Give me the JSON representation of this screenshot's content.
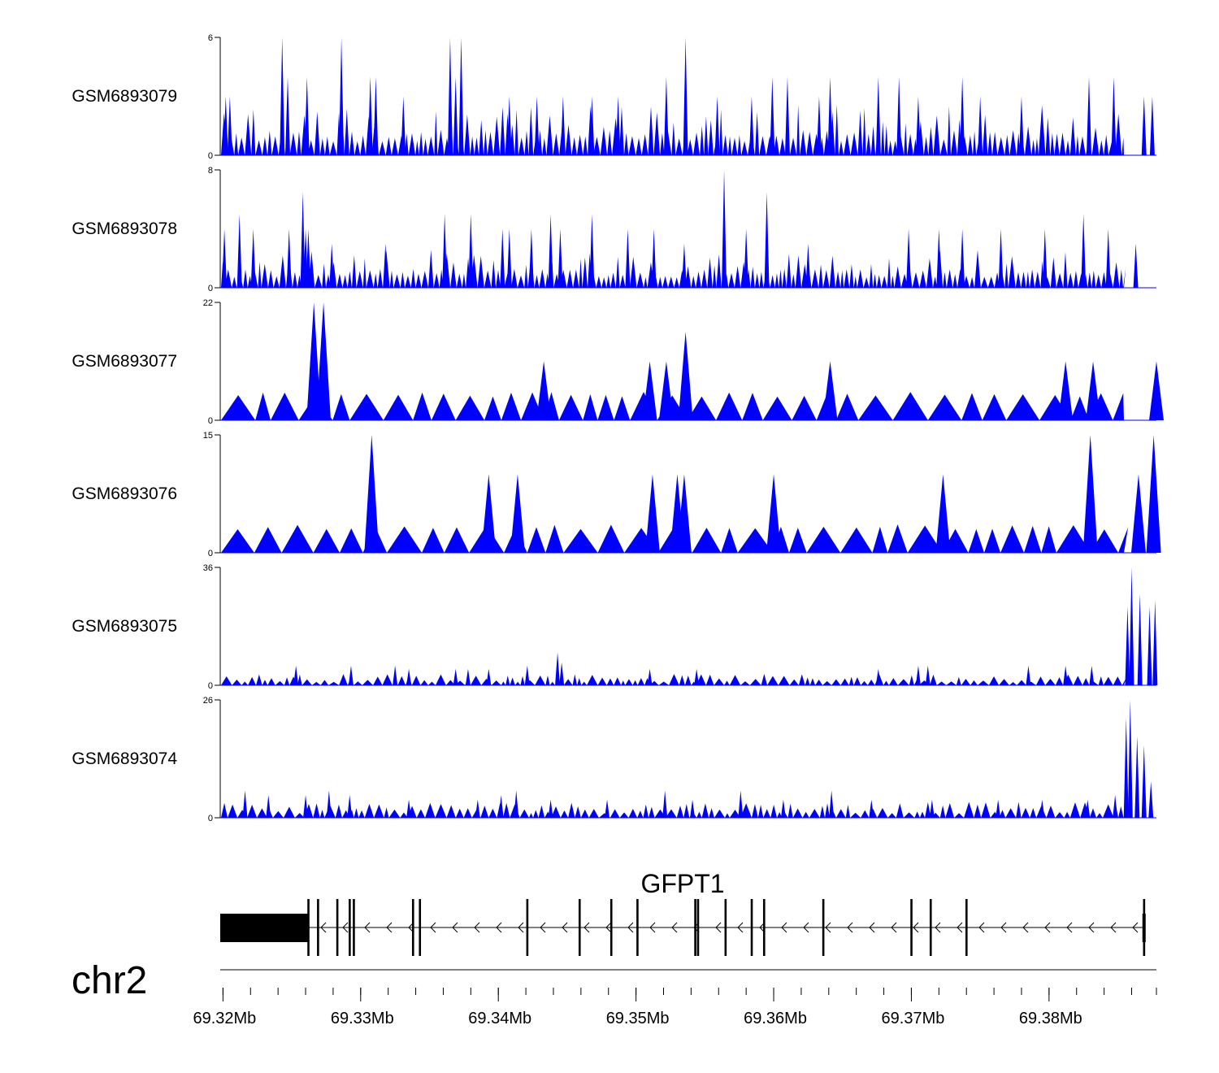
{
  "chart_data": {
    "type": "area",
    "chromosome": "chr2",
    "xlim": [
      69.3198,
      69.3878
    ],
    "x_unit": "Mb",
    "x_ticks": [
      {
        "value": 69.32,
        "label": "69.32Mb"
      },
      {
        "value": 69.33,
        "label": "69.33Mb"
      },
      {
        "value": 69.34,
        "label": "69.34Mb"
      },
      {
        "value": 69.35,
        "label": "69.35Mb"
      },
      {
        "value": 69.36,
        "label": "69.36Mb"
      },
      {
        "value": 69.37,
        "label": "69.37Mb"
      },
      {
        "value": 69.38,
        "label": "69.38Mb"
      }
    ],
    "series_color": "#0000ff",
    "tracks": [
      {
        "name": "GSM6893079",
        "ymax": 6,
        "ymax_label": "6",
        "ymin_label": "0",
        "style": "dense",
        "peaks": [
          [
            69.3202,
            3
          ],
          [
            69.3205,
            3
          ],
          [
            69.3243,
            6
          ],
          [
            69.3247,
            4
          ],
          [
            69.3261,
            4
          ],
          [
            69.3286,
            6
          ],
          [
            69.3307,
            4
          ],
          [
            69.3311,
            4
          ],
          [
            69.3331,
            3
          ],
          [
            69.3365,
            6
          ],
          [
            69.3373,
            6
          ],
          [
            69.3369,
            4
          ],
          [
            69.3408,
            3
          ],
          [
            69.3428,
            3
          ],
          [
            69.3447,
            3
          ],
          [
            69.3468,
            3
          ],
          [
            69.3487,
            3
          ],
          [
            69.3522,
            4
          ],
          [
            69.3536,
            6
          ],
          [
            69.3559,
            3
          ],
          [
            69.3584,
            3
          ],
          [
            69.3599,
            4
          ],
          [
            69.361,
            4
          ],
          [
            69.3633,
            3
          ],
          [
            69.3641,
            4
          ],
          [
            69.3676,
            4
          ],
          [
            69.3691,
            4
          ],
          [
            69.3705,
            3
          ],
          [
            69.3737,
            4
          ],
          [
            69.375,
            3
          ],
          [
            69.378,
            3
          ],
          [
            69.3829,
            4
          ],
          [
            69.3847,
            4
          ],
          [
            69.3869,
            3
          ],
          [
            69.3875,
            3
          ]
        ]
      },
      {
        "name": "GSM6893078",
        "ymax": 8,
        "ymax_label": "8",
        "ymin_label": "0",
        "style": "dense",
        "peaks": [
          [
            69.3201,
            4
          ],
          [
            69.3212,
            5
          ],
          [
            69.3222,
            4
          ],
          [
            69.3248,
            4
          ],
          [
            69.3258,
            6.5
          ],
          [
            69.326,
            4
          ],
          [
            69.3262,
            4
          ],
          [
            69.3279,
            3
          ],
          [
            69.3318,
            3
          ],
          [
            69.3361,
            5
          ],
          [
            69.338,
            5
          ],
          [
            69.3403,
            4
          ],
          [
            69.3408,
            4
          ],
          [
            69.3424,
            4
          ],
          [
            69.3438,
            5
          ],
          [
            69.3445,
            4
          ],
          [
            69.3468,
            5
          ],
          [
            69.3494,
            4
          ],
          [
            69.3513,
            4
          ],
          [
            69.3535,
            3
          ],
          [
            69.3564,
            8
          ],
          [
            69.358,
            4
          ],
          [
            69.3595,
            6.5
          ],
          [
            69.3625,
            3
          ],
          [
            69.3698,
            4
          ],
          [
            69.372,
            4
          ],
          [
            69.3737,
            4
          ],
          [
            69.3765,
            4
          ],
          [
            69.3797,
            4
          ],
          [
            69.3825,
            5
          ],
          [
            69.3843,
            4
          ],
          [
            69.3863,
            3
          ]
        ]
      },
      {
        "name": "GSM6893077",
        "ymax": 22,
        "ymax_label": "22",
        "ymin_label": "0",
        "style": "sparse",
        "peaks": [
          [
            69.3266,
            22
          ],
          [
            69.3273,
            22
          ],
          [
            69.3433,
            11
          ],
          [
            69.351,
            11
          ],
          [
            69.3522,
            11
          ],
          [
            69.3536,
            16.5
          ],
          [
            69.3641,
            11
          ],
          [
            69.3812,
            11
          ],
          [
            69.3832,
            11
          ],
          [
            69.3878,
            11
          ]
        ]
      },
      {
        "name": "GSM6893076",
        "ymax": 15,
        "ymax_label": "15",
        "ymin_label": "0",
        "style": "sparse",
        "peaks": [
          [
            69.3308,
            15
          ],
          [
            69.3393,
            10
          ],
          [
            69.3414,
            10
          ],
          [
            69.3512,
            10
          ],
          [
            69.353,
            10
          ],
          [
            69.3535,
            10
          ],
          [
            69.36,
            10
          ],
          [
            69.3723,
            10
          ],
          [
            69.383,
            15
          ],
          [
            69.3865,
            10
          ],
          [
            69.3876,
            15
          ]
        ]
      },
      {
        "name": "GSM6893075",
        "ymax": 36,
        "ymax_label": "36",
        "ymin_label": "0",
        "style": "low_with_end_peak",
        "peaks": [
          [
            69.3253,
            6
          ],
          [
            69.3293,
            6
          ],
          [
            69.3325,
            6
          ],
          [
            69.3335,
            5
          ],
          [
            69.3369,
            5
          ],
          [
            69.3378,
            5
          ],
          [
            69.3393,
            5
          ],
          [
            69.3421,
            6
          ],
          [
            69.3443,
            10
          ],
          [
            69.3446,
            7
          ],
          [
            69.351,
            5
          ],
          [
            69.3544,
            5
          ],
          [
            69.3676,
            5
          ],
          [
            69.3705,
            6
          ],
          [
            69.3712,
            6
          ],
          [
            69.3785,
            6
          ],
          [
            69.3812,
            6
          ],
          [
            69.3831,
            6
          ],
          [
            69.3857,
            24
          ],
          [
            69.386,
            36
          ],
          [
            69.3866,
            28
          ],
          [
            69.3873,
            24
          ],
          [
            69.3877,
            26
          ]
        ]
      },
      {
        "name": "GSM6893074",
        "ymax": 26,
        "ymax_label": "26",
        "ymin_label": "0",
        "style": "low_with_end_peak",
        "peaks": [
          [
            69.3201,
            3
          ],
          [
            69.3216,
            6
          ],
          [
            69.3233,
            5
          ],
          [
            69.326,
            5
          ],
          [
            69.3277,
            6
          ],
          [
            69.3292,
            5
          ],
          [
            69.3335,
            4
          ],
          [
            69.3385,
            4
          ],
          [
            69.3402,
            5
          ],
          [
            69.3413,
            6
          ],
          [
            69.3438,
            4
          ],
          [
            69.3479,
            4
          ],
          [
            69.3521,
            6
          ],
          [
            69.3541,
            4
          ],
          [
            69.3576,
            6
          ],
          [
            69.3607,
            4
          ],
          [
            69.3642,
            6
          ],
          [
            69.3671,
            4
          ],
          [
            69.3715,
            4
          ],
          [
            69.3763,
            4
          ],
          [
            69.3795,
            4
          ],
          [
            69.3828,
            4
          ],
          [
            69.3848,
            5
          ],
          [
            69.3856,
            22
          ],
          [
            69.3859,
            26
          ],
          [
            69.3864,
            18
          ],
          [
            69.3869,
            16
          ],
          [
            69.3874,
            8
          ]
        ]
      }
    ],
    "gene": {
      "name": "GFPT1",
      "strand": "-",
      "start": 69.3198,
      "end": 69.3869,
      "utr3": [
        69.3198,
        69.3262
      ],
      "exons": [
        69.3262,
        69.3269,
        69.3283,
        69.3292,
        69.3295,
        69.3338,
        69.3343,
        69.3421,
        69.3459,
        69.3482,
        69.3501,
        69.3543,
        69.3545,
        69.3565,
        69.3584,
        69.3593,
        69.3636,
        69.37,
        69.3714,
        69.374,
        69.3869
      ]
    }
  }
}
